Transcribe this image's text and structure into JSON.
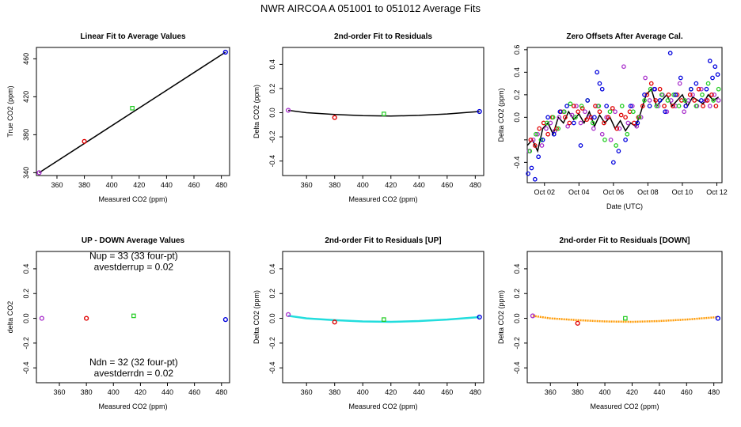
{
  "page_title": "NWR   AIRCOA A    051001 to 051012    Average Fits",
  "colors": {
    "purple": "#aa33cc",
    "red": "#e00000",
    "green": "#22cc22",
    "blue": "#0000dd",
    "black": "#000000",
    "cyan": "#22dddd",
    "orange": "#ff9900"
  },
  "chart_data": [
    {
      "id": "p1",
      "type": "scatter",
      "title": "Linear Fit to Average Values",
      "xlabel": "Measured CO2 (ppm)",
      "ylabel": "True CO2 (ppm)",
      "xlim": [
        345,
        486
      ],
      "ylim": [
        337,
        472
      ],
      "xticks": [
        360,
        380,
        400,
        420,
        440,
        460,
        480
      ],
      "yticks": [
        340,
        380,
        420,
        460
      ],
      "points": [
        {
          "x": 347,
          "y": 340,
          "color": "purple",
          "shape": "circle"
        },
        {
          "x": 380,
          "y": 373,
          "color": "red",
          "shape": "circle"
        },
        {
          "x": 415,
          "y": 408,
          "color": "green",
          "shape": "square"
        },
        {
          "x": 483,
          "y": 467,
          "color": "blue",
          "shape": "circle"
        }
      ],
      "lines": [
        {
          "x": [
            347,
            483
          ],
          "y": [
            340,
            467
          ],
          "color": "black"
        }
      ]
    },
    {
      "id": "p2",
      "type": "scatter",
      "title": "2nd-order Fit to Residuals",
      "xlabel": "Measured CO2 (ppm)",
      "ylabel": "Delta CO2 (ppm)",
      "xlim": [
        343,
        486
      ],
      "ylim": [
        -0.52,
        0.54
      ],
      "xticks": [
        360,
        380,
        400,
        420,
        440,
        460,
        480
      ],
      "yticks": [
        -0.4,
        -0.2,
        0.0,
        0.2,
        0.4
      ],
      "points": [
        {
          "x": 347,
          "y": 0.02,
          "color": "purple",
          "shape": "circle"
        },
        {
          "x": 380,
          "y": -0.04,
          "color": "red",
          "shape": "circle"
        },
        {
          "x": 415,
          "y": -0.01,
          "color": "green",
          "shape": "square"
        },
        {
          "x": 483,
          "y": 0.01,
          "color": "blue",
          "shape": "circle"
        }
      ],
      "curves": [
        {
          "color": "black",
          "x": [
            347,
            360,
            380,
            400,
            420,
            440,
            460,
            483
          ],
          "y": [
            0.02,
            0.0,
            -0.015,
            -0.025,
            -0.028,
            -0.022,
            -0.01,
            0.01
          ]
        }
      ]
    },
    {
      "id": "p3",
      "type": "scatter",
      "title": "Zero Offsets After Average Cal.",
      "xlabel": "Date (UTC)",
      "ylabel": "Delta CO2 (ppm)",
      "xlim": [
        0.0,
        11.3
      ],
      "ylim": [
        -0.58,
        0.62
      ],
      "xticks": [
        1,
        3,
        5,
        7,
        9,
        11
      ],
      "xtick_labels": [
        "Oct 02",
        "Oct 04",
        "Oct 06",
        "Oct 08",
        "Oct 10",
        "Oct 12"
      ],
      "yticks": [
        -0.4,
        -0.2,
        0.0,
        0.2,
        0.4,
        0.6
      ],
      "yticklabels": [
        "-0.4",
        "",
        "0.0",
        "0.2",
        "0.4",
        "0.6"
      ],
      "series": [
        {
          "name": "purple",
          "color": "purple",
          "x": [
            0.1,
            0.35,
            0.6,
            0.85,
            1.1,
            1.35,
            1.6,
            1.85,
            2.1,
            2.35,
            2.6,
            2.85,
            3.1,
            3.35,
            3.6,
            3.85,
            4.1,
            4.35,
            4.6,
            4.85,
            5.1,
            5.35,
            5.6,
            5.85,
            6.1,
            6.35,
            6.6,
            6.85,
            7.1,
            7.35,
            7.6,
            7.85,
            8.1,
            8.35,
            8.6,
            8.85,
            9.1,
            9.35,
            9.6,
            9.85,
            10.1,
            10.35,
            10.6,
            10.85,
            11.1
          ],
          "y": [
            -0.3,
            -0.2,
            -0.15,
            -0.25,
            -0.1,
            -0.05,
            -0.12,
            0.0,
            0.05,
            -0.08,
            0.02,
            0.1,
            -0.05,
            0.05,
            0.0,
            -0.1,
            0.1,
            -0.15,
            0.0,
            -0.2,
            0.05,
            -0.1,
            0.45,
            -0.05,
            0.1,
            -0.08,
            0.0,
            0.35,
            0.15,
            0.25,
            0.1,
            0.2,
            0.05,
            0.15,
            0.1,
            0.3,
            0.05,
            0.15,
            0.2,
            0.1,
            0.25,
            0.15,
            0.1,
            0.2,
            0.15
          ]
        },
        {
          "name": "red",
          "color": "red",
          "x": [
            0.2,
            0.45,
            0.7,
            0.95,
            1.2,
            1.45,
            1.7,
            1.95,
            2.2,
            2.45,
            2.7,
            2.95,
            3.2,
            3.45,
            3.7,
            3.95,
            4.2,
            4.45,
            4.7,
            4.95,
            5.2,
            5.45,
            5.7,
            5.95,
            6.2,
            6.45,
            6.7,
            6.95,
            7.2,
            7.45,
            7.7,
            7.95,
            8.2,
            8.45,
            8.7,
            8.95,
            9.2,
            9.45,
            9.7,
            9.95,
            10.2,
            10.45,
            10.7,
            10.95
          ],
          "y": [
            -0.2,
            -0.25,
            -0.1,
            -0.05,
            -0.15,
            0.0,
            -0.1,
            0.05,
            0.0,
            -0.05,
            0.1,
            0.05,
            0.08,
            -0.02,
            0.0,
            0.1,
            0.05,
            -0.05,
            0.0,
            0.08,
            -0.1,
            0.02,
            0.0,
            0.05,
            -0.05,
            0.0,
            0.1,
            0.2,
            0.3,
            0.15,
            0.25,
            0.1,
            0.2,
            0.1,
            0.2,
            0.15,
            0.1,
            0.2,
            0.15,
            0.25,
            0.1,
            0.15,
            0.2,
            0.1
          ]
        },
        {
          "name": "green",
          "color": "green",
          "x": [
            0.15,
            0.5,
            0.8,
            1.15,
            1.5,
            1.8,
            2.15,
            2.5,
            2.8,
            3.15,
            3.5,
            3.8,
            4.15,
            4.5,
            4.8,
            5.15,
            5.5,
            5.8,
            6.15,
            6.5,
            6.8,
            7.15,
            7.5,
            7.8,
            8.15,
            8.5,
            8.8,
            9.15,
            9.5,
            9.8,
            10.15,
            10.5,
            10.8,
            11.1
          ],
          "y": [
            -0.3,
            -0.15,
            -0.2,
            -0.05,
            0.0,
            -0.1,
            0.05,
            0.12,
            0.0,
            0.1,
            0.15,
            -0.05,
            0.1,
            -0.2,
            0.05,
            -0.25,
            0.1,
            -0.15,
            0.05,
            0.0,
            0.15,
            0.25,
            0.1,
            0.2,
            0.15,
            0.2,
            0.1,
            0.15,
            0.25,
            0.1,
            0.2,
            0.3,
            0.15,
            0.25
          ]
        },
        {
          "name": "blue",
          "color": "blue",
          "x": [
            0.05,
            0.25,
            0.45,
            0.65,
            0.9,
            1.2,
            1.55,
            1.9,
            2.3,
            2.7,
            3.1,
            3.5,
            3.9,
            4.05,
            4.2,
            4.35,
            4.6,
            5.0,
            5.3,
            5.7,
            6.0,
            6.4,
            6.8,
            7.1,
            7.4,
            7.7,
            8.0,
            8.3,
            8.6,
            8.9,
            9.2,
            9.5,
            9.8,
            10.1,
            10.4,
            10.6,
            10.75,
            10.9,
            11.05
          ],
          "y": [
            -0.5,
            -0.45,
            -0.55,
            -0.35,
            -0.2,
            0.0,
            -0.15,
            0.05,
            0.1,
            -0.05,
            -0.25,
            0.15,
            0.0,
            0.4,
            0.3,
            0.25,
            0.1,
            -0.4,
            -0.3,
            -0.2,
            0.1,
            -0.05,
            0.2,
            0.1,
            0.25,
            0.15,
            0.05,
            0.57,
            0.2,
            0.35,
            0.1,
            0.25,
            0.3,
            0.15,
            0.25,
            0.5,
            0.35,
            0.45,
            0.38
          ]
        }
      ],
      "lines": [
        {
          "color": "black",
          "x": [
            0,
            0.3,
            0.6,
            0.9,
            1.2,
            1.5,
            1.8,
            2.1,
            2.4,
            2.7,
            3.0,
            3.3,
            3.6,
            3.9,
            4.2,
            4.5,
            4.8,
            5.1,
            5.4,
            5.7,
            6.0,
            6.3,
            6.6,
            6.9,
            7.2,
            7.5,
            7.8,
            8.1,
            8.4,
            8.7,
            9.0,
            9.3,
            9.6,
            9.9,
            10.2,
            10.5,
            10.8,
            11.1
          ],
          "y": [
            -0.25,
            -0.2,
            -0.3,
            -0.1,
            -0.05,
            -0.15,
            0.0,
            -0.05,
            0.05,
            -0.02,
            0.03,
            -0.05,
            0.05,
            -0.08,
            0.02,
            -0.05,
            0.0,
            -0.1,
            -0.03,
            -0.12,
            -0.05,
            -0.08,
            0.05,
            0.2,
            0.25,
            0.1,
            0.15,
            0.2,
            0.1,
            0.15,
            0.2,
            0.1,
            0.18,
            0.15,
            0.12,
            0.2,
            0.15,
            0.18
          ]
        }
      ]
    },
    {
      "id": "p4",
      "type": "scatter",
      "title": "UP - DOWN Average Values",
      "xlabel": "Measured CO2 (ppm)",
      "ylabel": "delta CO2",
      "xlim": [
        343,
        486
      ],
      "ylim": [
        -0.52,
        0.54
      ],
      "xticks": [
        360,
        380,
        400,
        420,
        440,
        460,
        480
      ],
      "yticks": [
        -0.4,
        -0.2,
        0.0,
        0.2,
        0.4
      ],
      "points": [
        {
          "x": 347,
          "y": 0.0,
          "color": "purple",
          "shape": "circle"
        },
        {
          "x": 380,
          "y": 0.0,
          "color": "red",
          "shape": "circle"
        },
        {
          "x": 415,
          "y": 0.02,
          "color": "green",
          "shape": "square"
        },
        {
          "x": 483,
          "y": -0.01,
          "color": "blue",
          "shape": "circle"
        }
      ],
      "annotations": [
        {
          "text": "Nup = 33 (33 four-pt)",
          "x": 415,
          "y": 0.48
        },
        {
          "text": "avestderrup =  0.02",
          "x": 415,
          "y": 0.39
        },
        {
          "text": "Ndn = 32 (32 four-pt)",
          "x": 415,
          "y": -0.38
        },
        {
          "text": "avestderrdn =  0.02",
          "x": 415,
          "y": -0.47
        }
      ]
    },
    {
      "id": "p5",
      "type": "scatter",
      "title": "2nd-order Fit to Residuals [UP]",
      "xlabel": "Measured CO2 (ppm)",
      "ylabel": "Delta CO2 (ppm)",
      "xlim": [
        343,
        486
      ],
      "ylim": [
        -0.52,
        0.54
      ],
      "xticks": [
        360,
        380,
        400,
        420,
        440,
        460,
        480
      ],
      "yticks": [
        -0.4,
        -0.2,
        0.0,
        0.2,
        0.4
      ],
      "points": [
        {
          "x": 347,
          "y": 0.03,
          "color": "purple",
          "shape": "circle"
        },
        {
          "x": 380,
          "y": -0.03,
          "color": "red",
          "shape": "circle"
        },
        {
          "x": 415,
          "y": -0.01,
          "color": "green",
          "shape": "square"
        },
        {
          "x": 483,
          "y": 0.01,
          "color": "blue",
          "shape": "circle"
        }
      ],
      "curves": [
        {
          "color": "cyan",
          "x": [
            347,
            360,
            380,
            400,
            420,
            440,
            460,
            483
          ],
          "y": [
            0.02,
            0.0,
            -0.015,
            -0.025,
            -0.028,
            -0.022,
            -0.01,
            0.01
          ]
        }
      ]
    },
    {
      "id": "p6",
      "type": "scatter",
      "title": "2nd-order Fit to Residuals [DOWN]",
      "xlabel": "Measured CO2 (ppm)",
      "ylabel": "Delta CO2 (ppm)",
      "xlim": [
        343,
        486
      ],
      "ylim": [
        -0.52,
        0.54
      ],
      "xticks": [
        360,
        380,
        400,
        420,
        440,
        460,
        480
      ],
      "yticks": [
        -0.4,
        -0.2,
        0.0,
        0.2,
        0.4
      ],
      "points": [
        {
          "x": 347,
          "y": 0.02,
          "color": "purple",
          "shape": "circle"
        },
        {
          "x": 380,
          "y": -0.04,
          "color": "red",
          "shape": "circle"
        },
        {
          "x": 415,
          "y": 0.0,
          "color": "green",
          "shape": "square"
        },
        {
          "x": 483,
          "y": 0.0,
          "color": "blue",
          "shape": "circle"
        }
      ],
      "curves": [
        {
          "color": "orange",
          "x": [
            347,
            360,
            380,
            400,
            420,
            440,
            460,
            483
          ],
          "y": [
            0.02,
            0.0,
            -0.015,
            -0.025,
            -0.028,
            -0.022,
            -0.01,
            0.01
          ]
        }
      ]
    }
  ]
}
